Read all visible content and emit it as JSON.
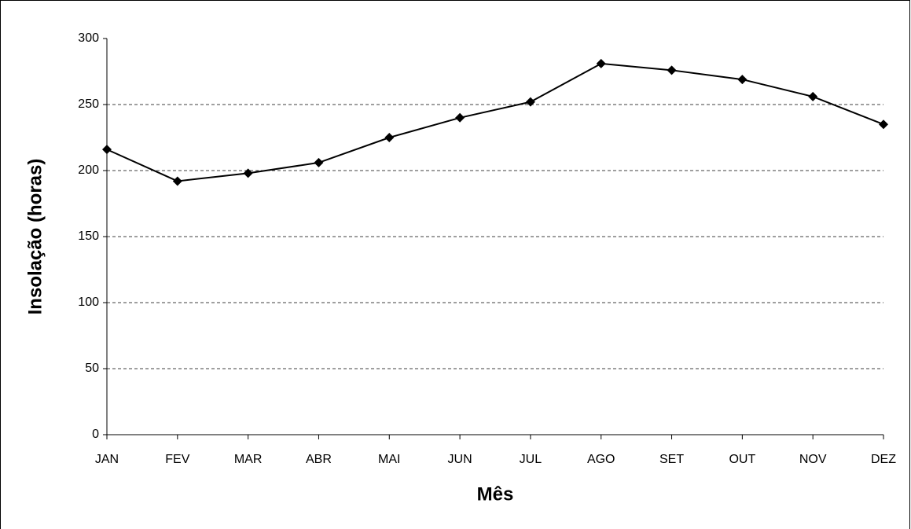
{
  "chart_data": {
    "type": "line",
    "x_label": "Mês",
    "y_label": "Insolação (horas)",
    "categories": [
      "JAN",
      "FEV",
      "MAR",
      "ABR",
      "MAI",
      "JUN",
      "JUL",
      "AGO",
      "SET",
      "OUT",
      "NOV",
      "DEZ"
    ],
    "values": [
      216,
      192,
      198,
      206,
      225,
      240,
      252,
      281,
      276,
      269,
      256,
      235
    ],
    "color": "#000000",
    "ylim": [
      0,
      300
    ],
    "yticks": [
      0,
      50,
      100,
      150,
      200,
      250,
      300
    ],
    "grid": true
  }
}
